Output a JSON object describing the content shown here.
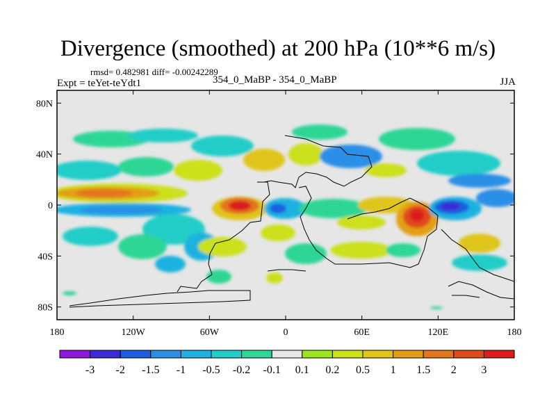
{
  "title": "Divergence (smoothed) at 200 hPa (10**6 m/s)",
  "stats": "rmsd= 0.482981 diff= -0.00242289",
  "experiment": "Expt = teYet-teYdt1",
  "cases": "354_0_MaBP - 354_0_MaBP",
  "season": "JJA",
  "chart_data": {
    "type": "heatmap",
    "projection": "cylindrical-equidistant",
    "xlim": [
      -180,
      180
    ],
    "ylim": [
      -90,
      90
    ],
    "x_ticks": [
      {
        "value": -180,
        "label": "180"
      },
      {
        "value": -120,
        "label": "120W"
      },
      {
        "value": -60,
        "label": "60W"
      },
      {
        "value": 0,
        "label": "0"
      },
      {
        "value": 60,
        "label": "60E"
      },
      {
        "value": 120,
        "label": "120E"
      },
      {
        "value": 180,
        "label": "180"
      }
    ],
    "y_ticks": [
      {
        "value": 80,
        "label": "80N"
      },
      {
        "value": 40,
        "label": "40N"
      },
      {
        "value": 0,
        "label": "0"
      },
      {
        "value": -40,
        "label": "40S"
      },
      {
        "value": -80,
        "label": "80S"
      }
    ],
    "colorbar": {
      "colors": [
        "#8c19d9",
        "#3a2bd6",
        "#1f5ee0",
        "#2a8fe6",
        "#1fb2e0",
        "#23cdc8",
        "#2fd696",
        "#e6e6e6",
        "#9be61e",
        "#cce01c",
        "#e0c51a",
        "#e39e17",
        "#e3751a",
        "#e04a1c",
        "#dc1c1c"
      ],
      "labels": [
        "-3",
        "-2",
        "-1.5",
        "-1",
        "-0.5",
        "-0.2",
        "-0.1",
        "0.1",
        "0.2",
        "0.5",
        "1",
        "1.5",
        "2",
        "3"
      ],
      "levels": [
        -3,
        -2,
        -1.5,
        -1,
        -0.5,
        -0.2,
        -0.1,
        0.1,
        0.2,
        0.5,
        1,
        1.5,
        2,
        3
      ]
    },
    "features": [
      {
        "name": "max-eq-west-africa",
        "lon": -33,
        "lat": 0,
        "rx": 22,
        "ry": 7,
        "value": 2.2
      },
      {
        "name": "max-maritime-continent",
        "lon": 103,
        "lat": -6,
        "rx": 13,
        "ry": 9,
        "value": 3.2
      },
      {
        "name": "min-eq-west-pacific",
        "lon": 128,
        "lat": -1,
        "rx": 16,
        "ry": 6,
        "value": -2.6
      },
      {
        "name": "max-band-north-pacific",
        "lon": -135,
        "lat": 7,
        "rx": 45,
        "ry": 4,
        "value": 1.4
      },
      {
        "name": "min-band-eq-pacific",
        "lon": -140,
        "lat": -3,
        "rx": 40,
        "ry": 5,
        "value": -0.8
      }
    ]
  }
}
